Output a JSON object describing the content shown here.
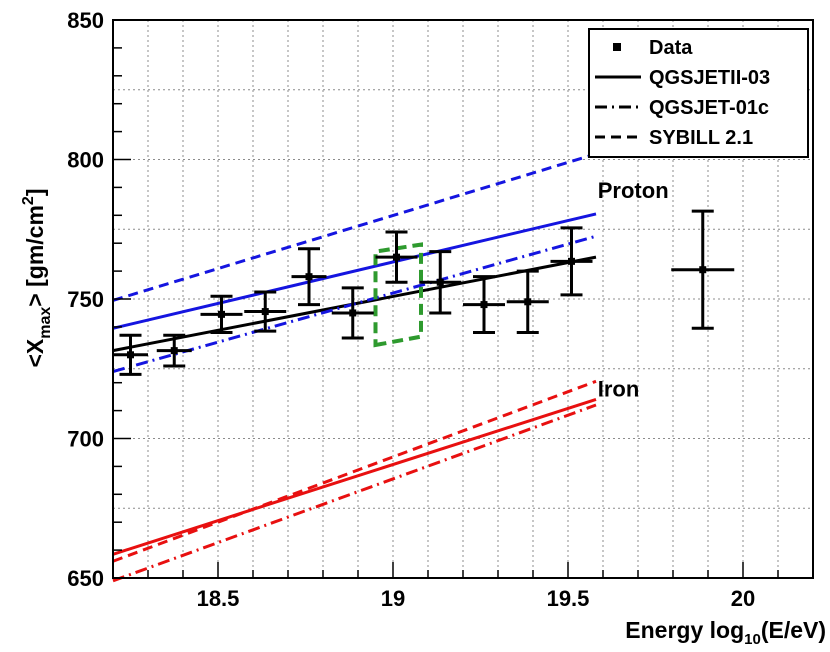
{
  "chart_data": {
    "type": "scatter",
    "title": "",
    "xlabel": {
      "main": "Energy  log",
      "sub": "10",
      "tail": "(E/eV)"
    },
    "ylabel": {
      "pre": "<X",
      "sub": "max",
      "mid": "> [gm/cm",
      "sup": "2",
      "post": "]"
    },
    "xlim": [
      18.2,
      20.2
    ],
    "ylim": [
      650,
      850
    ],
    "x_ticks": [
      18.5,
      19,
      19.5,
      20
    ],
    "x_tick_labels": [
      "18.5",
      "19",
      "19.5",
      "20"
    ],
    "y_ticks": [
      650,
      700,
      750,
      800,
      850
    ],
    "y_tick_labels": [
      "650",
      "700",
      "750",
      "800",
      "850"
    ],
    "grid": true,
    "legend": {
      "placement": "top-right",
      "entries": [
        {
          "label": "Data",
          "style": "marker"
        },
        {
          "label": "QGSJETII-03",
          "style": "solid"
        },
        {
          "label": "QGSJET-01c",
          "style": "dashdot"
        },
        {
          "label": "SYBILL 2.1",
          "style": "dashed"
        }
      ]
    },
    "annotations": [
      {
        "text": "Proton",
        "x": 19.585,
        "y": 789
      },
      {
        "text": "Iron",
        "x": 19.585,
        "y": 718
      }
    ],
    "colors": {
      "proton": "#1515e0",
      "iron": "#e81010",
      "data": "#000000",
      "fit": "#000000",
      "box": "#2e9a2e",
      "grid": "#8c8c8c"
    },
    "series": [
      {
        "name": "Data",
        "type": "points",
        "points": [
          {
            "x": 18.25,
            "y": 730.0,
            "xerr": 0.05,
            "yerr": 7.0
          },
          {
            "x": 18.375,
            "y": 731.5,
            "xerr": 0.05,
            "yerr": 5.5
          },
          {
            "x": 18.51,
            "y": 744.5,
            "xerr": 0.06,
            "yerr": 6.5
          },
          {
            "x": 18.635,
            "y": 745.5,
            "xerr": 0.06,
            "yerr": 7.0
          },
          {
            "x": 18.76,
            "y": 758.0,
            "xerr": 0.05,
            "yerr": 10.0
          },
          {
            "x": 18.885,
            "y": 745.0,
            "xerr": 0.06,
            "yerr": 9.0
          },
          {
            "x": 19.01,
            "y": 765.0,
            "xerr": 0.06,
            "yerr": 9.0
          },
          {
            "x": 19.135,
            "y": 756.0,
            "xerr": 0.06,
            "yerr": 11.0
          },
          {
            "x": 19.26,
            "y": 748.0,
            "xerr": 0.06,
            "yerr": 10.0
          },
          {
            "x": 19.385,
            "y": 749.0,
            "xerr": 0.06,
            "yerr": 11.0
          },
          {
            "x": 19.51,
            "y": 763.5,
            "xerr": 0.06,
            "yerr": 12.0
          },
          {
            "x": 19.885,
            "y": 760.5,
            "xerr": 0.09,
            "yerr": 21.0
          }
        ]
      },
      {
        "name": "Data fit",
        "type": "line",
        "style": "solid",
        "color": "fit",
        "x": [
          18.2,
          19.58
        ],
        "y": [
          731.5,
          765.0
        ]
      },
      {
        "name": "Proton QGSJETII-03",
        "type": "line",
        "style": "solid",
        "color": "proton",
        "x": [
          18.2,
          19.58
        ],
        "y": [
          739.5,
          780.5
        ]
      },
      {
        "name": "Proton QGSJET-01c",
        "type": "line",
        "style": "dashdot",
        "color": "proton",
        "x": [
          18.2,
          19.58
        ],
        "y": [
          724.0,
          772.5
        ]
      },
      {
        "name": "Proton SYBILL 2.1",
        "type": "line",
        "style": "dashed",
        "color": "proton",
        "x": [
          18.2,
          19.58
        ],
        "y": [
          749.5,
          802.0
        ]
      },
      {
        "name": "Iron QGSJETII-03",
        "type": "line",
        "style": "solid",
        "color": "iron",
        "x": [
          18.2,
          19.58
        ],
        "y": [
          658.5,
          714.0
        ]
      },
      {
        "name": "Iron QGSJET-01c",
        "type": "line",
        "style": "dashdot",
        "color": "iron",
        "x": [
          18.2,
          19.58
        ],
        "y": [
          649.0,
          712.0
        ]
      },
      {
        "name": "Iron SYBILL 2.1",
        "type": "line",
        "style": "dashed",
        "color": "iron",
        "x": [
          18.2,
          19.58
        ],
        "y": [
          656.0,
          720.5
        ]
      },
      {
        "name": "Highlight region",
        "type": "region",
        "style": "dashed",
        "color": "box",
        "x": [
          18.95,
          19.08
        ],
        "y_bottom": [
          733.5,
          736.5
        ],
        "y_top": [
          767.0,
          769.5
        ]
      }
    ]
  }
}
